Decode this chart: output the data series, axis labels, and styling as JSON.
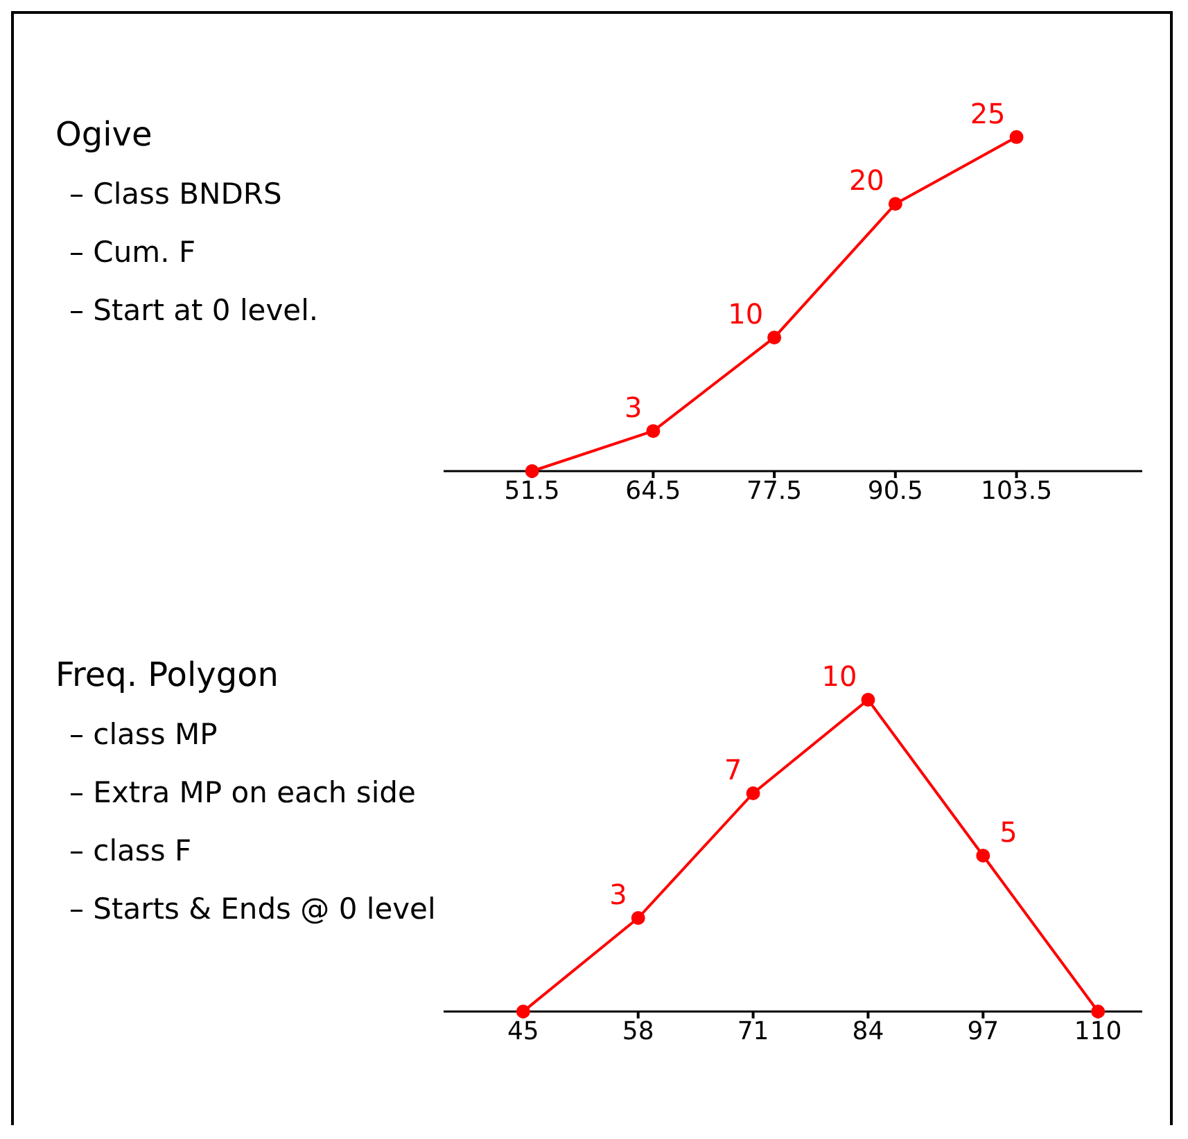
{
  "chart_data": [
    {
      "type": "line",
      "annotations": [
        "Ogive",
        "– Class BNDRS",
        "– Cum. F",
        "– Start at 0 level."
      ],
      "x": [
        51.5,
        64.5,
        77.5,
        90.5,
        103.5
      ],
      "series": [
        {
          "color": "#ff0000",
          "values": [
            0,
            3,
            10,
            20,
            25
          ],
          "value_labels": [
            null,
            "3",
            "10",
            "20",
            "25"
          ]
        }
      ],
      "xlim": [
        42,
        117
      ],
      "xticks": [
        51.5,
        64.5,
        77.5,
        90.5,
        103.5
      ],
      "marker": "circle",
      "grid": false,
      "legend": false,
      "tick_labels": "x"
    },
    {
      "type": "line",
      "annotations": [
        "Freq. Polygon",
        "– class MP",
        "– Extra MP on each side",
        "– class F",
        "– Starts & Ends @ 0 level"
      ],
      "x": [
        45,
        58,
        71,
        84,
        97,
        110
      ],
      "series": [
        {
          "color": "#ff0000",
          "values": [
            0,
            3,
            7,
            10,
            5,
            0
          ],
          "value_labels": [
            null,
            "3",
            "7",
            "10",
            "5",
            null
          ]
        }
      ],
      "xlim": [
        36,
        115
      ],
      "xticks": [
        45,
        58,
        71,
        84,
        97,
        110
      ],
      "marker": "circle",
      "grid": false,
      "legend": false,
      "tick_labels": "x"
    }
  ]
}
